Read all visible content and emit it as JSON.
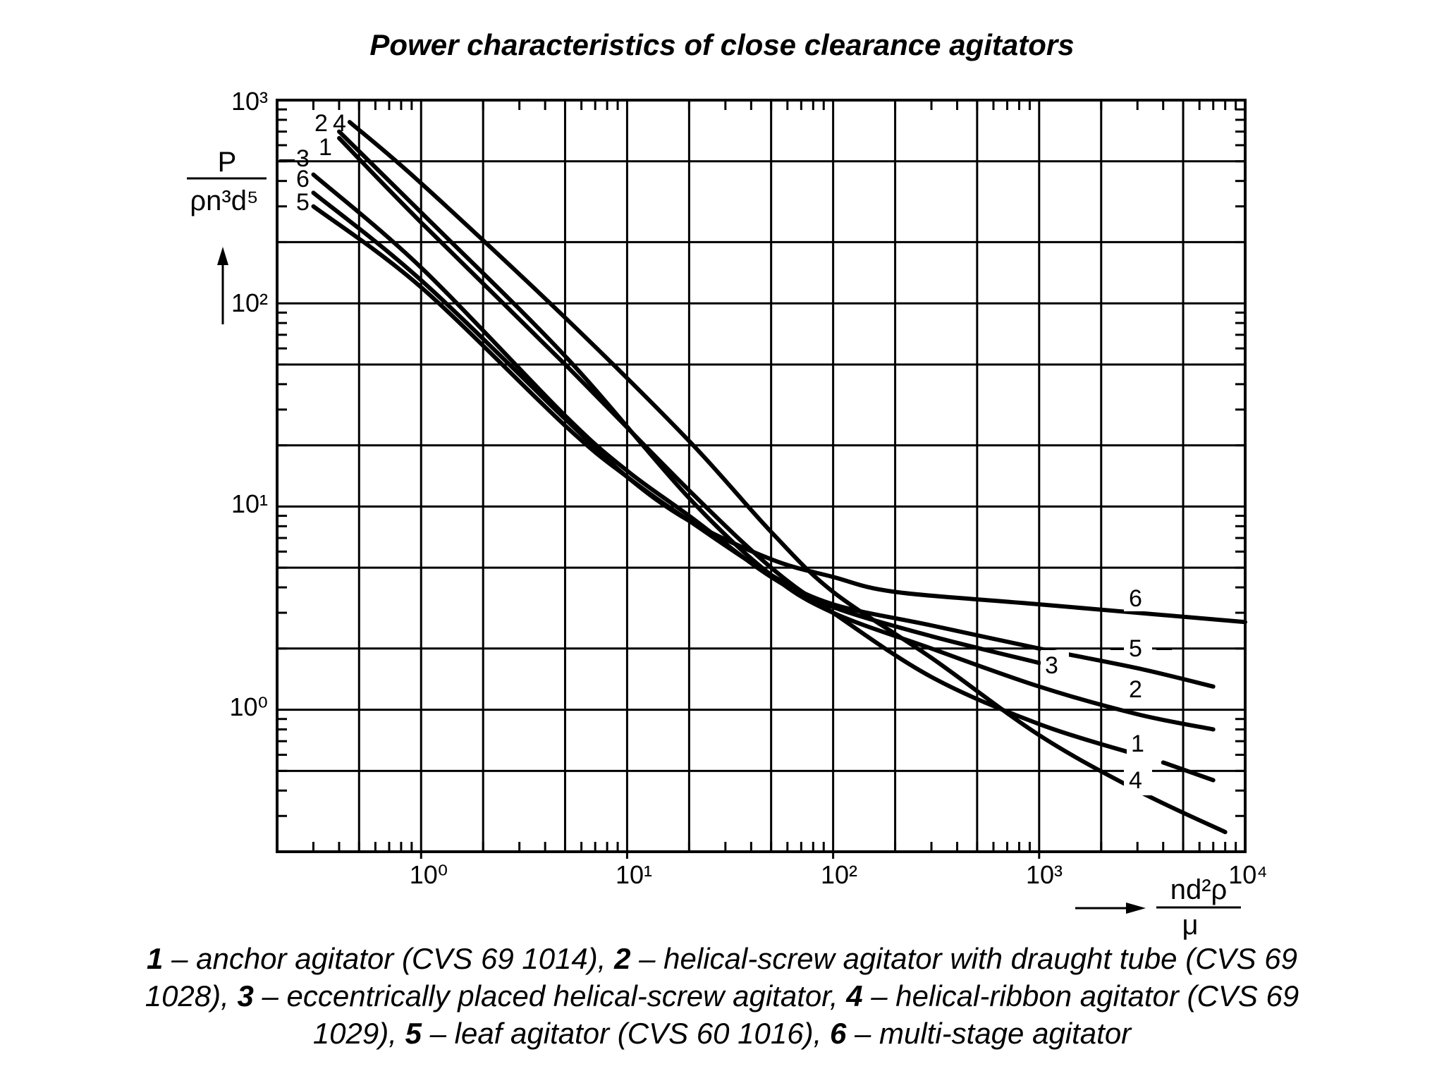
{
  "title": "Power characteristics of close clearance agitators",
  "chart_data": {
    "type": "line",
    "xscale": "log",
    "yscale": "log",
    "xlim": [
      0.2,
      10000
    ],
    "ylim": [
      0.2,
      1000
    ],
    "xlabel": {
      "numerator": "nd²ρ",
      "denominator": "μ"
    },
    "ylabel": {
      "numerator": "P",
      "denominator": "ρn³d⁵"
    },
    "x_ticks": [
      "10⁰",
      "10¹",
      "10²",
      "10³",
      "10⁴"
    ],
    "y_ticks": [
      "10³",
      "10²",
      "10¹",
      "10⁰"
    ],
    "grid": true,
    "series": [
      {
        "name": "1",
        "points": [
          [
            0.4,
            650
          ],
          [
            1,
            250
          ],
          [
            5,
            50
          ],
          [
            20,
            12
          ],
          [
            50,
            5
          ],
          [
            100,
            3
          ],
          [
            300,
            1.45
          ],
          [
            1000,
            0.85
          ],
          [
            3000,
            0.6
          ]
        ],
        "tail": [
          [
            4000,
            0.55
          ],
          [
            7000,
            0.45
          ]
        ]
      },
      {
        "name": "2",
        "points": [
          [
            0.4,
            700
          ],
          [
            1,
            280
          ],
          [
            5,
            55
          ],
          [
            20,
            11
          ],
          [
            50,
            4.6
          ],
          [
            100,
            3
          ],
          [
            300,
            2
          ],
          [
            1000,
            1.3
          ],
          [
            3000,
            0.95
          ],
          [
            7000,
            0.8
          ]
        ]
      },
      {
        "name": "3",
        "points": [
          [
            0.3,
            430
          ],
          [
            1,
            150
          ],
          [
            5,
            28
          ],
          [
            10,
            15
          ],
          [
            20,
            9
          ],
          [
            50,
            4.5
          ],
          [
            100,
            3.2
          ],
          [
            300,
            2.3
          ],
          [
            1000,
            1.7
          ]
        ]
      },
      {
        "name": "4",
        "points": [
          [
            0.45,
            780
          ],
          [
            1,
            390
          ],
          [
            5,
            85
          ],
          [
            20,
            21
          ],
          [
            50,
            7.5
          ],
          [
            100,
            3.8
          ],
          [
            300,
            1.8
          ],
          [
            1000,
            0.75
          ],
          [
            3000,
            0.4
          ],
          [
            8000,
            0.25
          ]
        ]
      },
      {
        "name": "5",
        "points": [
          [
            0.3,
            300
          ],
          [
            1,
            120
          ],
          [
            5,
            25
          ],
          [
            10,
            14
          ],
          [
            20,
            8.5
          ],
          [
            50,
            4.6
          ],
          [
            100,
            3.3
          ],
          [
            300,
            2.6
          ],
          [
            1000,
            2
          ],
          [
            3000,
            1.6
          ],
          [
            7000,
            1.3
          ]
        ]
      },
      {
        "name": "6",
        "points": [
          [
            0.3,
            350
          ],
          [
            1,
            130
          ],
          [
            5,
            27
          ],
          [
            10,
            14
          ],
          [
            20,
            8.5
          ],
          [
            50,
            5.5
          ],
          [
            100,
            4.5
          ],
          [
            200,
            3.8
          ],
          [
            1000,
            3.3
          ],
          [
            10000,
            2.7
          ]
        ]
      }
    ],
    "top_labels": "2 4 1 3 6 5 stacked left of the y-axis top",
    "curve_labels_order_top": [
      "2",
      "4",
      "1",
      "3",
      "6",
      "5"
    ]
  },
  "caption": {
    "parts": [
      {
        "num": "1",
        "text": " – anchor agitator (CVS 69 1014), "
      },
      {
        "num": "2",
        "text": " – helical-screw agitator with draught tube (CVS 69 1028), "
      },
      {
        "num": "3",
        "text": " – eccentrically placed helical-screw agitator, "
      },
      {
        "num": "4",
        "text": " – helical-ribbon agitator (CVS 69 1029), "
      },
      {
        "num": "5",
        "text": " – leaf agitator (CVS 60 1016), "
      },
      {
        "num": "6",
        "text": " – multi-stage agitator"
      }
    ]
  },
  "colors": {
    "line": "#000000",
    "background": "#ffffff"
  }
}
